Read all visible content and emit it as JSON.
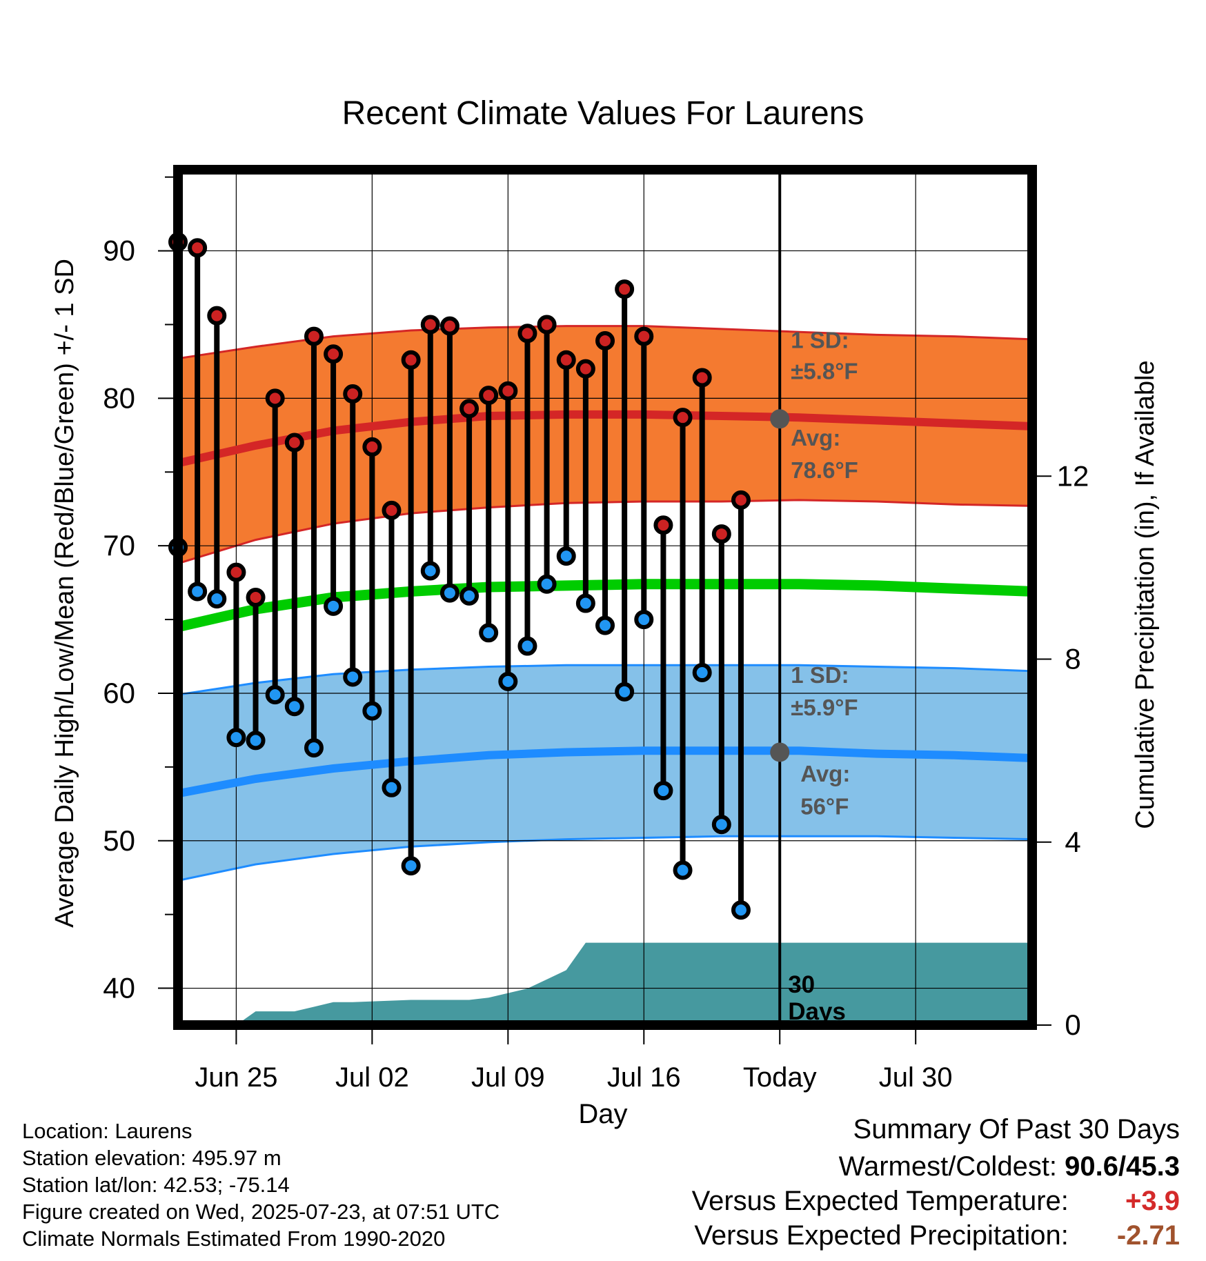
{
  "chart_data": {
    "type": "line",
    "title": "Recent Climate Values For Laurens",
    "xlabel": "Day",
    "ylabel": "Average Daily High/Low/Mean (Red/Blue/Green) +/- 1 SD",
    "y2label": "Cumulative Precipitation (in), If Available",
    "ylim": [
      37.5,
      95.5
    ],
    "y2lim": [
      0,
      18.7
    ],
    "yticks": [
      40,
      50,
      60,
      70,
      80,
      90
    ],
    "y2ticks": [
      0,
      4,
      8,
      12
    ],
    "x_range": [
      "Jun 22",
      "Aug 05"
    ],
    "xticks": [
      {
        "date": "Jun 25",
        "label": "Jun 25"
      },
      {
        "date": "Jul 02",
        "label": "Jul 02"
      },
      {
        "date": "Jul 09",
        "label": "Jul 09"
      },
      {
        "date": "Jul 16",
        "label": "Jul 16"
      },
      {
        "date": "Jul 23",
        "label": "Today"
      },
      {
        "date": "Jul 30",
        "label": "Jul 30"
      }
    ],
    "grid": true,
    "today": "Jul 23",
    "today_label": "30 Days",
    "daily": [
      {
        "date": "Jun 22",
        "high": 90.6,
        "low": 69.9
      },
      {
        "date": "Jun 23",
        "high": 90.2,
        "low": 66.9
      },
      {
        "date": "Jun 24",
        "high": 85.6,
        "low": 66.4
      },
      {
        "date": "Jun 25",
        "high": 68.2,
        "low": 57.0
      },
      {
        "date": "Jun 26",
        "high": 66.5,
        "low": 56.8
      },
      {
        "date": "Jun 27",
        "high": 80.0,
        "low": 59.9
      },
      {
        "date": "Jun 28",
        "high": 77.0,
        "low": 59.1
      },
      {
        "date": "Jun 29",
        "high": 84.2,
        "low": 56.3
      },
      {
        "date": "Jun 30",
        "high": 83.0,
        "low": 65.9
      },
      {
        "date": "Jul 01",
        "high": 80.3,
        "low": 61.1
      },
      {
        "date": "Jul 02",
        "high": 76.7,
        "low": 58.8
      },
      {
        "date": "Jul 03",
        "high": 72.4,
        "low": 53.6
      },
      {
        "date": "Jul 04",
        "high": 82.6,
        "low": 48.3
      },
      {
        "date": "Jul 05",
        "high": 85.0,
        "low": 68.3
      },
      {
        "date": "Jul 06",
        "high": 84.9,
        "low": 66.8
      },
      {
        "date": "Jul 07",
        "high": 79.3,
        "low": 66.6
      },
      {
        "date": "Jul 08",
        "high": 80.2,
        "low": 64.1
      },
      {
        "date": "Jul 09",
        "high": 80.5,
        "low": 60.8
      },
      {
        "date": "Jul 10",
        "high": 84.4,
        "low": 63.2
      },
      {
        "date": "Jul 11",
        "high": 85.0,
        "low": 67.4
      },
      {
        "date": "Jul 12",
        "high": 82.6,
        "low": 69.3
      },
      {
        "date": "Jul 13",
        "high": 82.0,
        "low": 66.1
      },
      {
        "date": "Jul 14",
        "high": 83.9,
        "low": 64.6
      },
      {
        "date": "Jul 15",
        "high": 87.4,
        "low": 60.1
      },
      {
        "date": "Jul 16",
        "high": 84.2,
        "low": 65.0
      },
      {
        "date": "Jul 17",
        "high": 71.4,
        "low": 53.4
      },
      {
        "date": "Jul 18",
        "high": 78.7,
        "low": 48.0
      },
      {
        "date": "Jul 19",
        "high": 81.4,
        "low": 61.4
      },
      {
        "date": "Jul 20",
        "high": 70.8,
        "low": 51.1
      },
      {
        "date": "Jul 21",
        "high": 73.1,
        "low": 45.3
      }
    ],
    "normals": {
      "dates": [
        "Jun 22",
        "Jun 26",
        "Jun 30",
        "Jul 04",
        "Jul 08",
        "Jul 12",
        "Jul 16",
        "Jul 20",
        "Jul 24",
        "Jul 28",
        "Aug 01",
        "Aug 05"
      ],
      "high_avg": [
        75.6,
        76.8,
        77.8,
        78.4,
        78.8,
        78.9,
        78.9,
        78.8,
        78.7,
        78.5,
        78.3,
        78.1
      ],
      "high_upper": [
        82.7,
        83.5,
        84.2,
        84.6,
        84.8,
        84.9,
        84.9,
        84.7,
        84.5,
        84.3,
        84.2,
        84.0
      ],
      "high_lower": [
        68.8,
        70.4,
        71.5,
        72.2,
        72.6,
        72.9,
        73.0,
        73.0,
        73.1,
        73.0,
        72.8,
        72.7
      ],
      "mean_avg": [
        64.5,
        65.7,
        66.5,
        66.9,
        67.2,
        67.3,
        67.4,
        67.4,
        67.4,
        67.3,
        67.1,
        66.9
      ],
      "low_avg": [
        53.2,
        54.2,
        54.9,
        55.4,
        55.8,
        56.0,
        56.1,
        56.1,
        56.1,
        55.9,
        55.8,
        55.6
      ],
      "low_upper": [
        59.9,
        60.7,
        61.3,
        61.6,
        61.8,
        61.9,
        61.9,
        61.9,
        61.9,
        61.8,
        61.7,
        61.5
      ],
      "low_lower": [
        47.3,
        48.4,
        49.1,
        49.6,
        49.9,
        50.1,
        50.2,
        50.3,
        50.3,
        50.3,
        50.2,
        50.1
      ]
    },
    "precip_cumulative": {
      "dates": [
        "Jun 22",
        "Jun 25",
        "Jun 26",
        "Jun 27",
        "Jun 28",
        "Jun 29",
        "Jun 30",
        "Jul 01",
        "Jul 04",
        "Jul 07",
        "Jul 08",
        "Jul 10",
        "Jul 11",
        "Jul 12",
        "Jul 13",
        "Jul 14",
        "Jul 23",
        "Aug 05"
      ],
      "values": [
        0.0,
        0.0,
        0.3,
        0.3,
        0.3,
        0.4,
        0.5,
        0.5,
        0.55,
        0.55,
        0.6,
        0.8,
        1.0,
        1.2,
        1.8,
        1.8,
        1.8,
        1.8
      ]
    },
    "annotations": {
      "high_sd": "1 SD:",
      "high_sd_value": "±5.8°F",
      "high_avg_label": "Avg:",
      "high_avg_value": "78.6°F",
      "low_sd": "1 SD:",
      "low_sd_value": "±5.9°F",
      "low_avg_label": "Avg:",
      "low_avg_value": "56°F",
      "today_high_avg": 78.6,
      "today_low_avg": 56.0
    },
    "colors": {
      "high_band": "#f47a30",
      "high_line": "#d42626",
      "low_band": "#85c1e9",
      "low_line": "#1e8cff",
      "mean_line": "#00cc00",
      "precip": "#46999f",
      "high_dot": "#cc2222",
      "low_dot": "#2196f3",
      "annotation": "#555555"
    }
  },
  "footer": {
    "location": "Location: Laurens",
    "elevation": "Station elevation: 495.97 m",
    "latlon": "Station lat/lon: 42.53; -75.14",
    "created": "Figure created on Wed, 2025-07-23, at 07:51 UTC",
    "normals": "Climate Normals Estimated From 1990-2020"
  },
  "summary": {
    "title": "Summary Of Past 30 Days",
    "warm_cold_label": "Warmest/Coldest:",
    "warm_cold_value": "90.6/45.3",
    "temp_label": "Versus Expected Temperature:",
    "temp_value": "+3.9",
    "precip_label": "Versus Expected Precipitation:",
    "precip_value": "-2.71"
  }
}
